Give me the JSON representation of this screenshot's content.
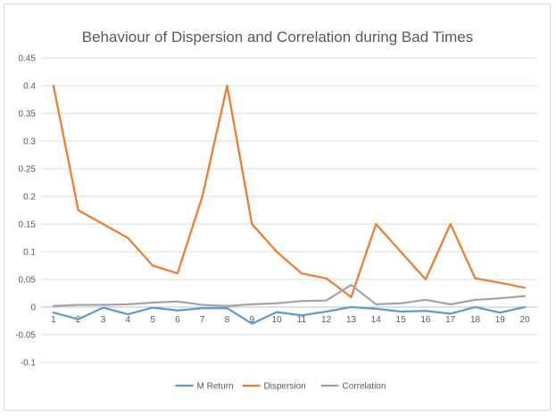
{
  "chart_data": {
    "type": "line",
    "title": "Behaviour of Dispersion and Correlation during Bad Times",
    "xlabel": "",
    "ylabel": "",
    "ylim": [
      -0.1,
      0.45
    ],
    "y_ticks": [
      -0.1,
      -0.05,
      0,
      0.05,
      0.1,
      0.15,
      0.2,
      0.25,
      0.3,
      0.35,
      0.4,
      0.45
    ],
    "y_tick_labels": [
      "-0.1",
      "-0.05",
      "0",
      "0.05",
      "0.1",
      "0.15",
      "0.2",
      "0.25",
      "0.3",
      "0.35",
      "0.4",
      "0.45"
    ],
    "categories": [
      "1",
      "2",
      "3",
      "4",
      "5",
      "6",
      "7",
      "8",
      "9",
      "10",
      "11",
      "12",
      "13",
      "14",
      "15",
      "16",
      "17",
      "18",
      "19",
      "20"
    ],
    "grid": true,
    "legend_position": "bottom",
    "series": [
      {
        "name": "M Return",
        "color": "#5b9bd5",
        "values": [
          -0.01,
          -0.022,
          -0.001,
          -0.013,
          -0.001,
          -0.006,
          -0.002,
          -0.002,
          -0.03,
          -0.009,
          -0.015,
          -0.008,
          0.0,
          -0.003,
          -0.008,
          -0.007,
          -0.012,
          0.0,
          -0.01,
          0.0
        ]
      },
      {
        "name": "Dispersion",
        "color": "#ed7d31",
        "values": [
          0.4,
          0.175,
          0.15,
          0.125,
          0.075,
          0.061,
          0.2,
          0.4,
          0.15,
          0.1,
          0.061,
          0.052,
          0.018,
          0.15,
          0.1,
          0.05,
          0.15,
          0.052,
          0.044,
          0.035
        ]
      },
      {
        "name": "Correlation",
        "color": "#a5a5a5",
        "values": [
          0.002,
          0.004,
          0.004,
          0.005,
          0.008,
          0.01,
          0.004,
          0.002,
          0.005,
          0.007,
          0.011,
          0.012,
          0.04,
          0.005,
          0.007,
          0.013,
          0.005,
          0.013,
          0.016,
          0.02
        ]
      }
    ]
  }
}
